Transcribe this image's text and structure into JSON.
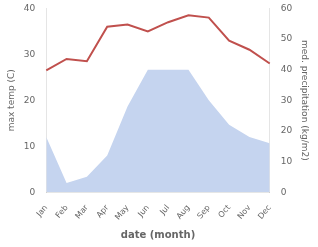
{
  "chart_data": {
    "type": "line",
    "xlabel": "date (month)",
    "ylabel": "max temp (C)",
    "y2label": "med. precipitation (kg/m2)",
    "categories": [
      "Jan",
      "Feb",
      "Mar",
      "Apr",
      "May",
      "Jun",
      "Jul",
      "Aug",
      "Sep",
      "Oct",
      "Nov",
      "Dec"
    ],
    "series": [
      {
        "type": "area",
        "color": "#c5d4ef",
        "axis": "y2",
        "values": [
          18.0,
          3.0,
          5.0,
          12.0,
          28.0,
          40.0,
          40.0,
          40.0,
          30.0,
          22.0,
          18.0,
          16.0
        ]
      },
      {
        "type": "line",
        "color": "#c0504d",
        "values": [
          26.5,
          29.0,
          28.5,
          36.0,
          36.5,
          35.0,
          37.0,
          38.5,
          38.0,
          33.0,
          31.0,
          28.0
        ]
      }
    ],
    "ylim": [
      0,
      40
    ],
    "yticks": [
      0,
      10,
      20,
      30,
      40
    ],
    "y2lim": [
      0,
      60
    ],
    "y2ticks": [
      0,
      10,
      20,
      30,
      40,
      50,
      60
    ],
    "grid": false
  }
}
